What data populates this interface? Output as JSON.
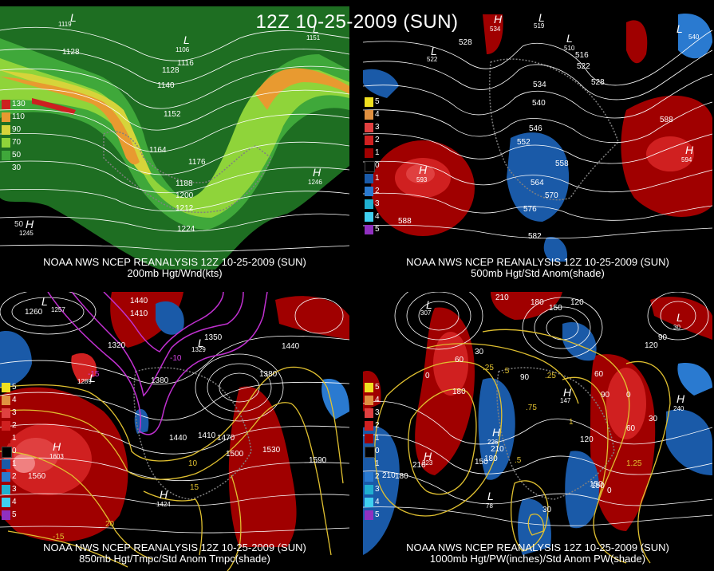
{
  "header": {
    "title": "12Z 10-25-2009 (SUN)"
  },
  "panels": {
    "p1": {
      "caption1": "NOAA NWS NCEP REANALYSIS 12Z 10-25-2009 (SUN)",
      "caption2": "200mb Hgt/Wnd(kts)",
      "legend": [
        {
          "label": "130",
          "color": "#cc2020"
        },
        {
          "label": "110",
          "color": "#e89a30"
        },
        {
          "label": "90",
          "color": "#d6d43a"
        },
        {
          "label": "70",
          "color": "#8fd43a"
        },
        {
          "label": "50",
          "color": "#3fa83a"
        },
        {
          "label": "30",
          "color": "#1e6e22"
        }
      ],
      "contours": [
        "1128",
        "1116",
        "1128",
        "1140",
        "1152",
        "1164",
        "1176",
        "1188",
        "1200",
        "1212",
        "1224"
      ],
      "highs_lows": [
        {
          "sym": "L",
          "val": "1119"
        },
        {
          "sym": "L",
          "val": "1106"
        },
        {
          "sym": "L",
          "val": "1151"
        },
        {
          "sym": "H",
          "val": "1246"
        },
        {
          "sym": "H",
          "val": "1245"
        }
      ],
      "axis": [
        "-130",
        "-120",
        "-110",
        "-100",
        "-90",
        "-60"
      ]
    },
    "p2": {
      "caption1": "NOAA NWS NCEP REANALYSIS 12Z 10-25-2009 (SUN)",
      "caption2": "500mb Hgt/Std Anom(shade)",
      "legend": [
        {
          "label": "5",
          "color": "#f0e020"
        },
        {
          "label": "4",
          "color": "#e09040"
        },
        {
          "label": "3",
          "color": "#e04040"
        },
        {
          "label": "2",
          "color": "#d02020"
        },
        {
          "label": "1",
          "color": "#a00000"
        },
        {
          "label": "0",
          "color": "#000000"
        },
        {
          "label": "1",
          "color": "#1a5aa8"
        },
        {
          "label": "2",
          "color": "#2a7ad0"
        },
        {
          "label": "3",
          "color": "#20b0d0"
        },
        {
          "label": "4",
          "color": "#40d0f0"
        },
        {
          "label": "5",
          "color": "#9030c0"
        }
      ],
      "contours": [
        "528",
        "534",
        "540",
        "546",
        "552",
        "558",
        "564",
        "570",
        "576",
        "582",
        "588",
        "588",
        "516",
        "522",
        "528"
      ],
      "highs_lows": [
        {
          "sym": "H",
          "val": "593"
        },
        {
          "sym": "H",
          "val": "594"
        },
        {
          "sym": "H",
          "val": "534"
        },
        {
          "sym": "L",
          "val": "522"
        },
        {
          "sym": "L",
          "val": "510"
        },
        {
          "sym": "L",
          "val": "519"
        },
        {
          "sym": "L",
          "val": "540"
        }
      ],
      "axis": [
        "-120",
        "-110",
        "-100",
        "-90",
        "-80"
      ]
    },
    "p3": {
      "caption1": "NOAA NWS NCEP REANALYSIS 12Z 10-25-2009 (SUN)",
      "caption2": "850mb Hgt/Tmpc/Std Anom Tmpc(shade)",
      "legend": [
        {
          "label": "5",
          "color": "#f0e020"
        },
        {
          "label": "4",
          "color": "#e09040"
        },
        {
          "label": "3",
          "color": "#e04040"
        },
        {
          "label": "2",
          "color": "#d02020"
        },
        {
          "label": "1",
          "color": "#a00000"
        },
        {
          "label": "0",
          "color": "#000000"
        },
        {
          "label": "1",
          "color": "#1a5aa8"
        },
        {
          "label": "2",
          "color": "#2a7ad0"
        },
        {
          "label": "3",
          "color": "#20b0d0"
        },
        {
          "label": "4",
          "color": "#40d0f0"
        },
        {
          "label": "5",
          "color": "#9030c0"
        }
      ],
      "contours": [
        "1260",
        "1440",
        "1410",
        "1320",
        "1350",
        "1380",
        "1440",
        "1410",
        "1470",
        "1500",
        "1530",
        "1590",
        "1560",
        "1440",
        "1380"
      ],
      "temps": [
        "-10",
        "-15",
        "10",
        "15",
        "20",
        "-15"
      ],
      "highs_lows": [
        {
          "sym": "L",
          "val": "1257"
        },
        {
          "sym": "L",
          "val": "1289"
        },
        {
          "sym": "H",
          "val": "1603"
        },
        {
          "sym": "H",
          "val": "1424"
        },
        {
          "sym": "L",
          "val": "1329"
        }
      ]
    },
    "p4": {
      "caption1": "NOAA NWS NCEP REANALYSIS 12Z 10-25-2009 (SUN)",
      "caption2": "1000mb Hgt/PW(inches)/Std Anom PW(shade)",
      "legend": [
        {
          "label": "5",
          "color": "#f0e020"
        },
        {
          "label": "4",
          "color": "#e09040"
        },
        {
          "label": "3",
          "color": "#e04040"
        },
        {
          "label": "2",
          "color": "#d02020"
        },
        {
          "label": "1",
          "color": "#a00000"
        },
        {
          "label": "0",
          "color": "#000000"
        },
        {
          "label": "1",
          "color": "#1a5aa8"
        },
        {
          "label": "2",
          "color": "#2a7ad0"
        },
        {
          "label": "3",
          "color": "#20b0d0"
        },
        {
          "label": "4",
          "color": "#40d0f0"
        },
        {
          "label": "5",
          "color": "#9030c0"
        }
      ],
      "contours": [
        "210",
        "180",
        "150",
        "120",
        "90",
        "60",
        "30",
        "0",
        "210",
        "180",
        "150",
        "120",
        "90",
        "60",
        "30",
        "0",
        "210",
        "180",
        "150",
        "120",
        "90",
        "60",
        "30",
        "0",
        "210",
        "180",
        "150"
      ],
      "pw": [
        ".25",
        ".5",
        ".75",
        "1",
        "1.25",
        ".25",
        ".5"
      ],
      "highs_lows": [
        {
          "sym": "L",
          "val": "307"
        },
        {
          "sym": "H",
          "val": "147"
        },
        {
          "sym": "H",
          "val": "226"
        },
        {
          "sym": "H",
          "val": "223"
        },
        {
          "sym": "L",
          "val": "78"
        },
        {
          "sym": "H",
          "val": "240"
        },
        {
          "sym": "L",
          "val": "30"
        }
      ]
    }
  },
  "colors": {
    "jet_dark": "#1e6e22",
    "jet_mid": "#3fa83a",
    "jet_light": "#8fd43a",
    "jet_yellow": "#d6d43a",
    "jet_orange": "#e89a30",
    "jet_red": "#cc2020",
    "anom_pos": "#a00000",
    "anom_pos2": "#e04040",
    "anom_neg": "#1a5aa8",
    "temp_contour": "#e0c030",
    "cold_contour": "#c030d0",
    "land": "#808080"
  }
}
